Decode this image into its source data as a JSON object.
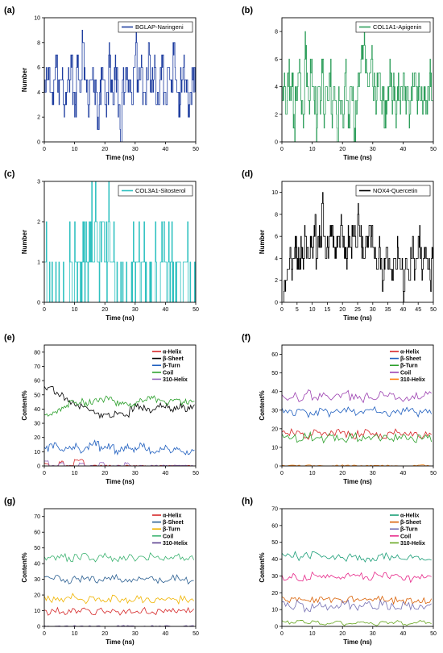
{
  "chart_data": [
    {
      "panel": "(a)",
      "type": "line",
      "xlabel": "Time (ns)",
      "ylabel": "Number",
      "xlim": [
        0,
        50
      ],
      "ylim": [
        0,
        10
      ],
      "xticks": [
        "0",
        "10",
        "20",
        "30",
        "40",
        "50"
      ],
      "yticks": [
        "0",
        "2",
        "4",
        "6",
        "8",
        "10"
      ],
      "legend_position": "top-right",
      "series": [
        {
          "name": "BGLAP-Naringeni",
          "color": "#1f3ea0",
          "min": 1,
          "max": 8,
          "baseline": 5,
          "y": [
            4,
            5,
            6,
            4,
            3,
            5,
            7,
            4,
            5,
            6,
            3,
            4,
            5,
            5,
            7,
            4,
            3,
            6,
            5,
            4,
            8,
            5,
            4,
            3,
            5,
            6,
            4,
            5,
            2,
            4,
            6,
            5,
            3,
            4,
            7,
            5,
            4,
            6,
            5,
            3,
            1,
            5,
            4,
            6,
            5,
            4,
            3,
            5,
            8,
            4,
            5,
            6,
            4,
            3,
            5,
            7,
            4,
            5,
            6,
            3,
            4,
            5,
            7,
            4,
            3,
            6,
            5,
            4,
            8,
            5,
            4,
            3,
            5,
            6,
            4,
            5,
            2,
            4,
            6,
            5
          ]
        }
      ]
    },
    {
      "panel": "(b)",
      "type": "line",
      "xlabel": "Time (ns)",
      "ylabel": "",
      "xlim": [
        0,
        50
      ],
      "ylim": [
        0,
        9
      ],
      "xticks": [
        "0",
        "10",
        "20",
        "30",
        "40",
        "50"
      ],
      "yticks": [
        "0",
        "2",
        "4",
        "6",
        "8"
      ],
      "legend_position": "top-right",
      "series": [
        {
          "name": "COL1A1-Apigenin",
          "color": "#2e9e5b",
          "y": [
            3,
            4,
            2,
            5,
            3,
            4,
            1,
            3,
            4,
            5,
            3,
            2,
            7,
            4,
            3,
            5,
            4,
            3,
            1,
            4,
            3,
            6,
            2,
            4,
            3,
            5,
            2,
            4,
            3,
            0,
            4,
            3,
            2,
            5,
            3,
            1,
            4,
            3,
            0,
            2,
            4,
            5,
            6,
            7,
            5,
            4,
            5,
            6,
            4,
            3,
            4,
            5,
            3,
            4,
            2,
            3,
            4,
            5,
            3,
            4,
            2,
            4,
            3,
            4,
            5,
            3,
            4,
            2,
            3,
            4,
            5,
            3,
            4,
            3,
            2,
            4,
            3,
            4,
            5,
            3
          ]
        }
      ]
    },
    {
      "panel": "(c)",
      "type": "line",
      "xlabel": "Time (ns)",
      "ylabel": "Number",
      "xlim": [
        0,
        50
      ],
      "ylim": [
        0,
        3
      ],
      "xticks": [
        "0",
        "10",
        "20",
        "30",
        "40",
        "50"
      ],
      "yticks": [
        "0",
        "1",
        "2",
        "3"
      ],
      "legend_position": "top-right",
      "series": [
        {
          "name": "COL3A1-Sitosterol",
          "color": "#2fc1c0",
          "y": [
            1,
            0,
            0,
            0,
            0,
            0,
            0,
            0,
            0,
            0,
            1,
            0,
            1,
            1,
            0,
            1,
            1,
            1,
            2,
            1,
            2,
            1,
            2,
            2,
            1,
            2,
            1,
            1,
            0,
            0,
            0,
            0,
            0,
            0,
            0,
            1,
            0,
            1,
            0,
            1,
            0,
            0,
            0,
            0,
            1,
            0,
            1,
            1,
            0,
            1,
            1,
            0,
            1,
            1,
            0,
            1,
            1,
            1,
            0,
            0
          ]
        }
      ]
    },
    {
      "panel": "(d)",
      "type": "line",
      "xlabel": "Time (ns)",
      "ylabel": "Number",
      "xlim": [
        0,
        50
      ],
      "ylim": [
        0,
        11
      ],
      "xticks": [
        "0",
        "5",
        "10",
        "15",
        "20",
        "25",
        "30",
        "35",
        "40",
        "45",
        "50"
      ],
      "yticks": [
        "0",
        "2",
        "4",
        "6",
        "8",
        "10"
      ],
      "legend_position": "top-right",
      "series": [
        {
          "name": "NOX4-Quercetin",
          "color": "#000000",
          "y": [
            0,
            1,
            2,
            3,
            4,
            3,
            4,
            5,
            4,
            3,
            5,
            4,
            6,
            5,
            4,
            6,
            5,
            7,
            4,
            6,
            5,
            9,
            6,
            4,
            5,
            6,
            7,
            5,
            4,
            6,
            5,
            7,
            6,
            5,
            4,
            6,
            5,
            7,
            6,
            5,
            8,
            6,
            5,
            4,
            6,
            5,
            7,
            6,
            5,
            4,
            3,
            5,
            4,
            2,
            4,
            5,
            3,
            4,
            2,
            4,
            3,
            5,
            4,
            3,
            1,
            4,
            3,
            2,
            4,
            5,
            3,
            4,
            6,
            4,
            3,
            5,
            4,
            3,
            2,
            4
          ]
        }
      ]
    },
    {
      "panel": "(e)",
      "type": "line",
      "xlabel": "Time (ns)",
      "ylabel": "Content%",
      "xlim": [
        0,
        50
      ],
      "ylim": [
        0,
        85
      ],
      "xticks": [
        "0",
        "10",
        "20",
        "30",
        "40",
        "50"
      ],
      "yticks": [
        "0",
        "10",
        "20",
        "30",
        "40",
        "50",
        "60",
        "70",
        "80"
      ],
      "legend_position": "top-right",
      "series": [
        {
          "name": "α-Helix",
          "color": "#d62728",
          "y": [
            2,
            0,
            0,
            3,
            0,
            0,
            4,
            4,
            0,
            0,
            0,
            0,
            0,
            0,
            0,
            0,
            0,
            0,
            0,
            0,
            0,
            0,
            0,
            0,
            0,
            0,
            0,
            0,
            0,
            0
          ]
        },
        {
          "name": "β-Sheet",
          "color": "#000000",
          "y": [
            55,
            57,
            52,
            50,
            47,
            45,
            43,
            42,
            40,
            38,
            37,
            35,
            36,
            34,
            38,
            37,
            36,
            40,
            42,
            41,
            40,
            39,
            41,
            43,
            42,
            40,
            41,
            42,
            40,
            42
          ]
        },
        {
          "name": "β-Turn",
          "color": "#1f5fbf",
          "y": [
            12,
            14,
            15,
            10,
            12,
            13,
            14,
            11,
            12,
            15,
            16,
            12,
            14,
            13,
            10,
            12,
            14,
            11,
            13,
            15,
            12,
            10,
            11,
            12,
            13,
            11,
            12,
            9,
            10,
            11
          ]
        },
        {
          "name": "Coil",
          "color": "#2ca02c",
          "y": [
            35,
            36,
            38,
            40,
            43,
            45,
            44,
            46,
            44,
            45,
            47,
            46,
            48,
            47,
            44,
            45,
            44,
            42,
            44,
            46,
            47,
            48,
            46,
            45,
            44,
            45,
            46,
            44,
            45,
            46
          ]
        },
        {
          "name": "310-Helix",
          "color": "#9467bd",
          "y": [
            3,
            0,
            0,
            2,
            0,
            0,
            0,
            2,
            0,
            0,
            0,
            2,
            0,
            0,
            0,
            0,
            2,
            0,
            0,
            0,
            0,
            0,
            0,
            0,
            0,
            0,
            0,
            0,
            0,
            0
          ]
        }
      ]
    },
    {
      "panel": "(f)",
      "type": "line",
      "xlabel": "Time (ns)",
      "ylabel": "Content%",
      "xlim": [
        0,
        50
      ],
      "ylim": [
        0,
        65
      ],
      "xticks": [
        "0",
        "10",
        "20",
        "30",
        "40",
        "50"
      ],
      "yticks": [
        "0",
        "10",
        "20",
        "30",
        "40",
        "50",
        "60"
      ],
      "legend_position": "top-right",
      "series": [
        {
          "name": "α-Helix",
          "color": "#d62728",
          "y": [
            17,
            18,
            17,
            16,
            18,
            17,
            17,
            18,
            17,
            16,
            17,
            18,
            17,
            16,
            17,
            18,
            17,
            17,
            16,
            17
          ]
        },
        {
          "name": "β-Sheet",
          "color": "#1f5fbf",
          "y": [
            30,
            29,
            30,
            28,
            29,
            30,
            28,
            29,
            30,
            29,
            28,
            29,
            30,
            29,
            28,
            29,
            30,
            29,
            28,
            29
          ]
        },
        {
          "name": "β-Turn",
          "color": "#2ca02c",
          "y": [
            16,
            15,
            14,
            17,
            15,
            14,
            16,
            15,
            13,
            16,
            15,
            14,
            16,
            15,
            14,
            16,
            15,
            14,
            16,
            15
          ]
        },
        {
          "name": "Coil",
          "color": "#9b3fb0",
          "y": [
            37,
            38,
            36,
            39,
            37,
            38,
            36,
            37,
            39,
            37,
            36,
            38,
            37,
            39,
            38,
            37,
            36,
            38,
            37,
            38
          ]
        },
        {
          "name": "310-Helix",
          "color": "#ff7f0e",
          "y": [
            0,
            0,
            0,
            0,
            0,
            0,
            0,
            0,
            0,
            0,
            0,
            0,
            0,
            0,
            0,
            0,
            0,
            0,
            0,
            0
          ]
        }
      ]
    },
    {
      "panel": "(g)",
      "type": "line",
      "xlabel": "Time (ns)",
      "ylabel": "Content%",
      "xlim": [
        0,
        50
      ],
      "ylim": [
        0,
        75
      ],
      "xticks": [
        "0",
        "10",
        "20",
        "30",
        "40",
        "50"
      ],
      "yticks": [
        "0",
        "10",
        "20",
        "30",
        "40",
        "50",
        "60",
        "70"
      ],
      "legend_position": "top-right",
      "series": [
        {
          "name": "α-Helix",
          "color": "#d62728",
          "y": [
            9,
            10,
            9,
            10,
            9,
            10,
            9,
            10,
            9,
            10,
            9,
            10,
            9,
            10,
            9,
            10,
            9,
            10,
            9,
            10
          ]
        },
        {
          "name": "β-Sheet",
          "color": "#2b5f91",
          "y": [
            30,
            31,
            30,
            29,
            30,
            31,
            30,
            29,
            30,
            31,
            30,
            29,
            30,
            31,
            30,
            29,
            30,
            31,
            30,
            29
          ]
        },
        {
          "name": "β-Turn",
          "color": "#f0b400",
          "y": [
            18,
            17,
            16,
            19,
            17,
            16,
            18,
            17,
            16,
            18,
            17,
            16,
            18,
            17,
            16,
            18,
            17,
            16,
            18,
            17
          ]
        },
        {
          "name": "Coil",
          "color": "#3cb371",
          "y": [
            43,
            44,
            45,
            43,
            44,
            45,
            43,
            44,
            45,
            43,
            44,
            45,
            43,
            44,
            45,
            43,
            44,
            45,
            43,
            44
          ]
        },
        {
          "name": "310-Helix",
          "color": "#5a3e8f",
          "y": [
            0,
            0,
            0,
            0,
            0,
            0,
            0,
            0,
            0,
            0,
            0,
            0,
            0,
            0,
            0,
            0,
            0,
            0,
            0,
            0
          ]
        }
      ]
    },
    {
      "panel": "(h)",
      "type": "line",
      "xlabel": "Time (ns)",
      "ylabel": "Content%",
      "xlim": [
        0,
        50
      ],
      "ylim": [
        0,
        70
      ],
      "xticks": [
        "0",
        "10",
        "20",
        "30",
        "40",
        "50"
      ],
      "yticks": [
        "0",
        "10",
        "20",
        "30",
        "40",
        "50",
        "60",
        "70"
      ],
      "legend_position": "top-right",
      "series": [
        {
          "name": "α-Helix",
          "color": "#1a9e77",
          "y": [
            42,
            43,
            41,
            42,
            43,
            41,
            42,
            41,
            40,
            42,
            41,
            40,
            41,
            42,
            40,
            41,
            40,
            41,
            40,
            41
          ]
        },
        {
          "name": "β-Sheet",
          "color": "#d95f02",
          "y": [
            16,
            16,
            16,
            16,
            16,
            16,
            16,
            16,
            15,
            16,
            16,
            15,
            16,
            16,
            15,
            16,
            15,
            15,
            16,
            15
          ]
        },
        {
          "name": "β-Turn",
          "color": "#7570b3",
          "y": [
            13,
            11,
            14,
            10,
            12,
            13,
            11,
            12,
            14,
            12,
            11,
            13,
            12,
            14,
            12,
            11,
            13,
            12,
            12,
            13
          ]
        },
        {
          "name": "Coil",
          "color": "#e7298a",
          "y": [
            29,
            30,
            28,
            29,
            31,
            29,
            30,
            28,
            30,
            31,
            30,
            29,
            31,
            30,
            29,
            30,
            29,
            28,
            29,
            30
          ]
        },
        {
          "name": "310-Helix",
          "color": "#66a61e",
          "y": [
            3,
            2,
            4,
            2,
            3,
            1,
            2,
            3,
            1,
            2,
            3,
            2,
            1,
            3,
            2,
            3,
            1,
            2,
            3,
            2
          ]
        }
      ]
    }
  ]
}
